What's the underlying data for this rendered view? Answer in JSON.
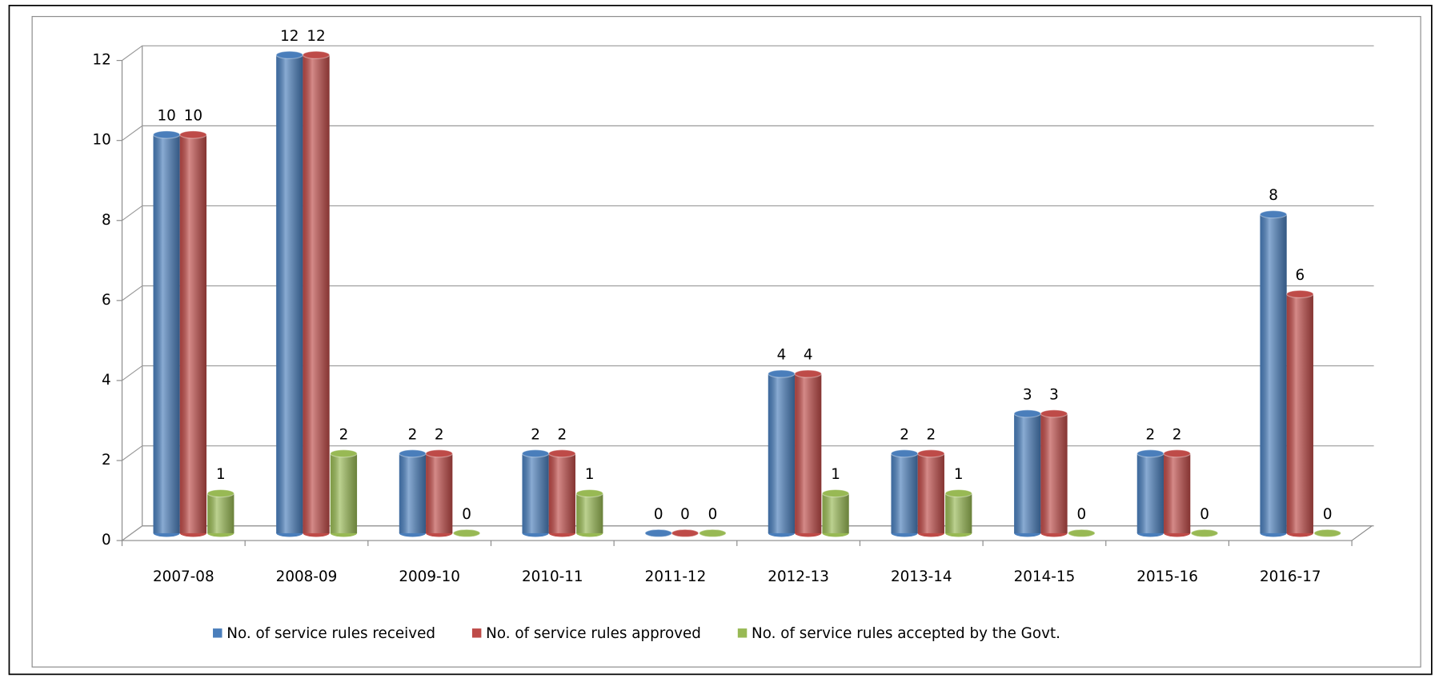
{
  "chart_data": {
    "type": "bar",
    "categories": [
      "2007-08",
      "2008-09",
      "2009-10",
      "2010-11",
      "2011-12",
      "2012-13",
      "2013-14",
      "2014-15",
      "2015-16",
      "2016-17"
    ],
    "series": [
      {
        "name": "No. of service rules received",
        "color": "#4a7ebb",
        "values": [
          10,
          12,
          2,
          2,
          0,
          4,
          2,
          3,
          2,
          8
        ]
      },
      {
        "name": "No. of service rules approved",
        "color": "#be4b48",
        "values": [
          10,
          12,
          2,
          2,
          0,
          4,
          2,
          3,
          2,
          6
        ]
      },
      {
        "name": "No. of service rules accepted by the Govt.",
        "color": "#98b954",
        "values": [
          1,
          2,
          0,
          1,
          0,
          1,
          1,
          0,
          0,
          0
        ]
      }
    ],
    "ylim": [
      0,
      12
    ],
    "yticks": [
      0,
      2,
      4,
      6,
      8,
      10,
      12
    ],
    "grid": true,
    "legend": "bottom",
    "value_labels_shown": true
  }
}
